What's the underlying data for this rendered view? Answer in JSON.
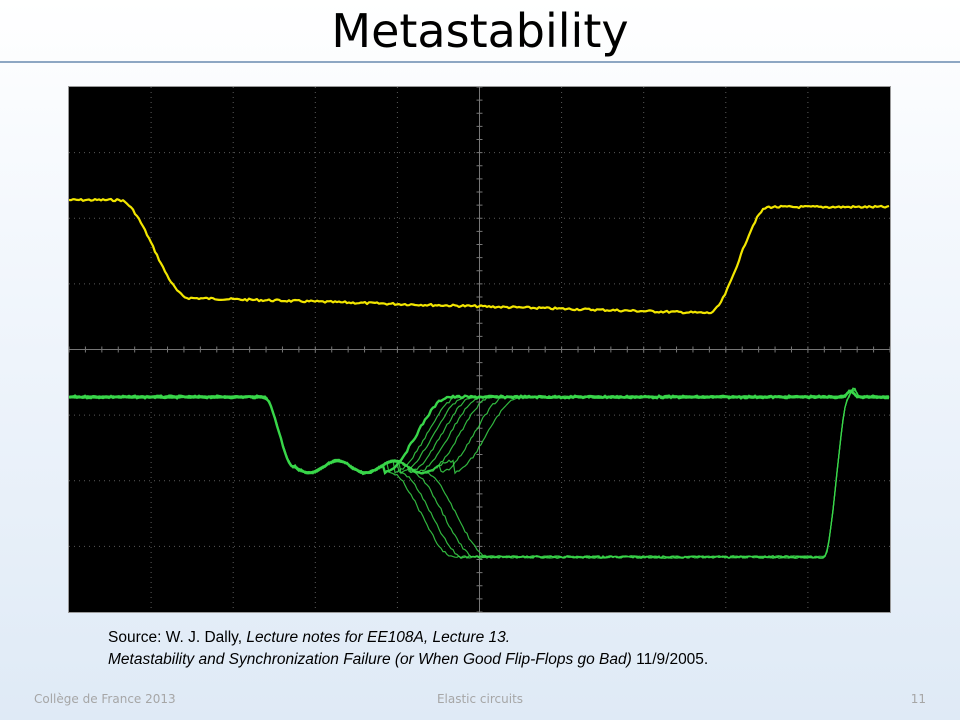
{
  "slide": {
    "title": "Metastability",
    "figure": {
      "traces": [
        {
          "name": "",
          "color": "#f2e600"
        },
        {
          "name": "",
          "color": "#39d64a"
        }
      ],
      "background": "#000000",
      "grid_color": "#5a5a5a"
    },
    "source": {
      "prefix": "Source: W. J. Dally, ",
      "italic1": "Lecture notes for EE108A, Lecture 13.",
      "italic2": "Metastability and Synchronization Failure (or When Good Flip-Flops go Bad)",
      "date": " 11/9/2005."
    },
    "footer": {
      "left": "Collège de France 2013",
      "center": "Elastic circuits",
      "page": "11"
    }
  },
  "colors": {
    "title_rule": "#8ea7c3",
    "footer_text": "#a6a6a6"
  }
}
